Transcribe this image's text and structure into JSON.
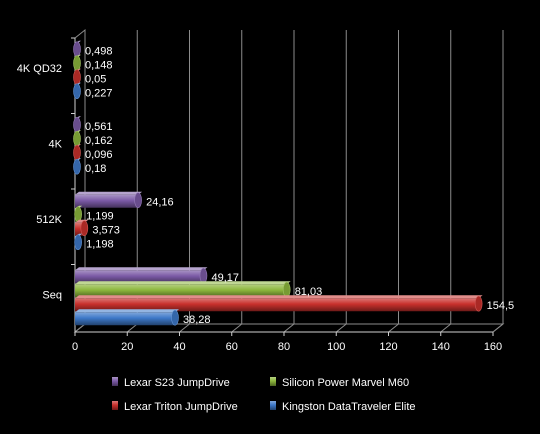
{
  "chart_data": {
    "type": "bar",
    "orientation": "horizontal",
    "style": "3d-cylinder-bars",
    "categories": [
      "4K QD32",
      "4K",
      "512K",
      "Seq"
    ],
    "series": [
      {
        "name": "Lexar S23 JumpDrive",
        "color": "#7b5aa6",
        "values": [
          0.498,
          0.561,
          24.16,
          49.17
        ],
        "labels": [
          "0,498",
          "0,561",
          "24,16",
          "49,17"
        ]
      },
      {
        "name": "Silicon Power Marvel M60",
        "color": "#8cb63c",
        "values": [
          0.148,
          0.162,
          1.199,
          81.03
        ],
        "labels": [
          "0,148",
          "0,162",
          "1,199",
          "81,03"
        ]
      },
      {
        "name": "Lexar Triton JumpDrive",
        "color": "#c8302c",
        "values": [
          0.05,
          0.096,
          3.573,
          154.5
        ],
        "labels": [
          "0,05",
          "0,096",
          "3,573",
          "154,5"
        ]
      },
      {
        "name": "Kingston DataTraveler  Elite",
        "color": "#3d78c8",
        "values": [
          0.227,
          0.18,
          1.198,
          38.28
        ],
        "labels": [
          "0,227",
          "0,18",
          "1,198",
          "38,28"
        ]
      }
    ],
    "xlim": [
      0,
      160
    ],
    "xticks": [
      "0",
      "20",
      "40",
      "60",
      "80",
      "100",
      "120",
      "140",
      "160"
    ],
    "grid": true,
    "legend_position": "bottom",
    "background": "#000000",
    "grid_color": "#8c8c8c"
  }
}
